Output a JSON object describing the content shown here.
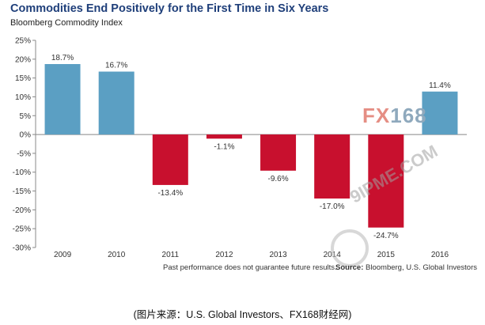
{
  "header": {
    "title": "Commodities End Positively for the First Time in Six Years",
    "subtitle": "Bloomberg Commodity Index"
  },
  "chart_data": {
    "type": "bar",
    "categories": [
      "2009",
      "2010",
      "2011",
      "2012",
      "2013",
      "2014",
      "2015",
      "2016"
    ],
    "values": [
      18.7,
      16.7,
      -13.4,
      -1.1,
      -9.6,
      -17.0,
      -24.7,
      11.4
    ],
    "value_labels": [
      "18.7%",
      "16.7%",
      "-13.4%",
      "-1.1%",
      "-9.6%",
      "-17.0%",
      "-24.7%",
      "11.4%"
    ],
    "ylim": [
      -30,
      25
    ],
    "yticks": [
      25,
      20,
      15,
      10,
      5,
      0,
      -5,
      -10,
      -15,
      -20,
      -25,
      -30
    ],
    "ytick_labels": [
      "25%",
      "20%",
      "15%",
      "10%",
      "5%",
      "0%",
      "-5%",
      "-10%",
      "-15%",
      "-20%",
      "-25%",
      "-30%"
    ],
    "colors": {
      "positive": "#5b9fc3",
      "negative": "#c8102e"
    },
    "grid": false,
    "legend": "none"
  },
  "footer": {
    "disclaimer": "Past performance does not guarantee future results.",
    "source_label": "Source:",
    "source_text": " Bloomberg, U.S. Global Investors"
  },
  "caption": "(图片来源：U.S. Global Investors、FX168财经网)",
  "watermarks": {
    "logo_fx": "FX",
    "logo_num": "168",
    "site": "9IPME.COM"
  }
}
